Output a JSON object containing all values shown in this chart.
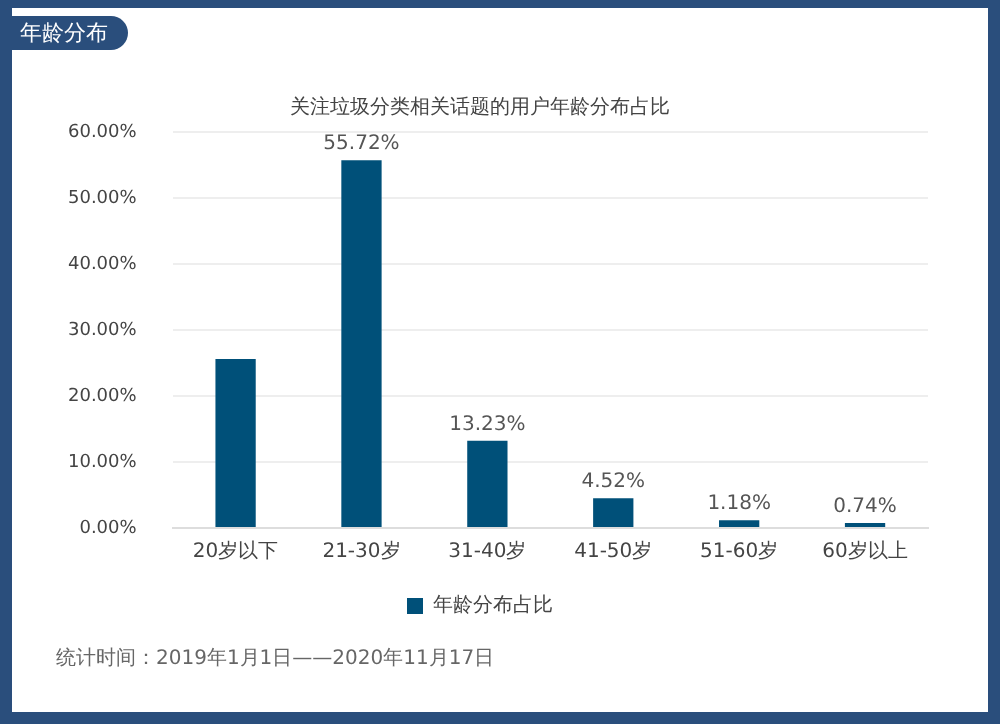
{
  "chart_data": {
    "type": "bar",
    "title": "年龄分布",
    "subtitle": "关注垃圾分类相关话题的用户年龄分布占比",
    "categories": [
      "20岁以下",
      "21-30岁",
      "31-40岁",
      "41-50岁",
      "51-60岁",
      "60岁以上"
    ],
    "series": [
      {
        "name": "年龄分布占比",
        "color": "#005079",
        "values": [
          25.6,
          55.72,
          13.23,
          4.52,
          1.18,
          0.74
        ],
        "value_labels": [
          null,
          "55.72%",
          "13.23%",
          "4.52%",
          "1.18%",
          "0.74%"
        ]
      }
    ],
    "ylim": [
      0,
      60
    ],
    "yticks": [
      {
        "value": 0,
        "label": "0.00%"
      },
      {
        "value": 10,
        "label": "10.00%"
      },
      {
        "value": 20,
        "label": "20.00%"
      },
      {
        "value": 30,
        "label": "30.00%"
      },
      {
        "value": 40,
        "label": "40.00%"
      },
      {
        "value": 50,
        "label": "50.00%"
      },
      {
        "value": 60,
        "label": "60.00%"
      }
    ],
    "grid": "y",
    "legend": "bottom",
    "annotations": [
      "统计时间：2019年1月1日——2020年11月17日"
    ]
  }
}
